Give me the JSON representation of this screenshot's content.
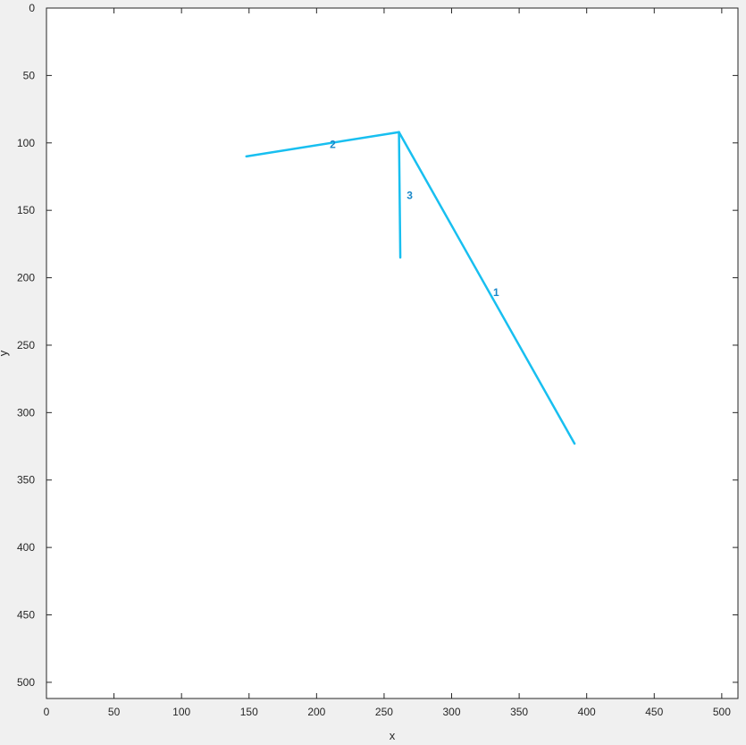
{
  "chart_data": {
    "type": "line",
    "title": "",
    "xlabel": "x",
    "ylabel": "y",
    "xlim": [
      0,
      512
    ],
    "ylim": [
      0,
      512
    ],
    "y_axis_reversed": true,
    "grid": false,
    "x_ticks": [
      0,
      50,
      100,
      150,
      200,
      250,
      300,
      350,
      400,
      450,
      500
    ],
    "y_ticks": [
      0,
      50,
      100,
      150,
      200,
      250,
      300,
      350,
      400,
      450,
      500
    ],
    "line_color": "#18bff0",
    "label_color": "#1a88c9",
    "series": [
      {
        "name": "1",
        "x": [
          261,
          391
        ],
        "y": [
          92,
          323
        ],
        "label_at": [
          333,
          211
        ]
      },
      {
        "name": "2",
        "x": [
          148,
          261
        ],
        "y": [
          110,
          92
        ],
        "label_at": [
          212,
          101
        ]
      },
      {
        "name": "3",
        "x": [
          261,
          262
        ],
        "y": [
          92,
          185
        ],
        "label_at": [
          269,
          139
        ]
      }
    ]
  }
}
